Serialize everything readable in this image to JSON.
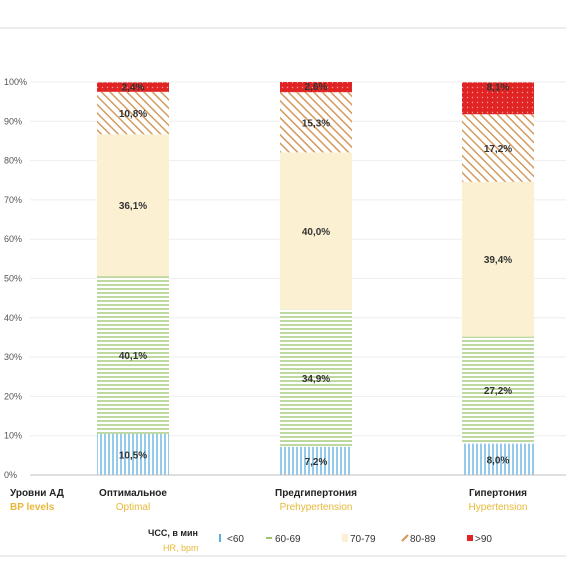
{
  "chart_data": {
    "type": "bar",
    "stacked": true,
    "ylim": [
      0,
      100
    ],
    "y_ticks": [
      "0%",
      "10%",
      "20%",
      "30%",
      "40%",
      "50%",
      "60%",
      "70%",
      "80%",
      "90%",
      "100%"
    ],
    "categories": [
      {
        "ru": "Оптимальное",
        "en": "Optimal"
      },
      {
        "ru": "Предгипертония",
        "en": "Prehypertension"
      },
      {
        "ru": "Гипертония",
        "en": "Hypertension"
      }
    ],
    "category_axis_label": {
      "ru": "Уровни АД",
      "en": "BP levels"
    },
    "series": [
      {
        "name": "<60",
        "color": "#5aaee0",
        "values": [
          10.5,
          7.2,
          8.0
        ],
        "labels": [
          "10,5%",
          "7,2%",
          "8,0%"
        ]
      },
      {
        "name": "60-69",
        "color": "#9cc56e",
        "values": [
          40.1,
          34.9,
          27.2
        ],
        "labels": [
          "40,1%",
          "34,9%",
          "27,2%"
        ]
      },
      {
        "name": "70-79",
        "color": "#fbf1d2",
        "values": [
          36.1,
          40.0,
          39.4
        ],
        "labels": [
          "36,1%",
          "40,0%",
          "39,4%"
        ]
      },
      {
        "name": "80-89",
        "color": "#d49a5e",
        "values": [
          10.8,
          15.3,
          17.2
        ],
        "labels": [
          "10,8%",
          "15,3%",
          "17,2%"
        ]
      },
      {
        "name": ">90",
        "color": "#e02424",
        "values": [
          2.4,
          2.6,
          8.1
        ],
        "labels": [
          "2,4%",
          "2,6%",
          "8,1%"
        ]
      }
    ],
    "legend": {
      "title_ru": "ЧСС, в мин",
      "title_en": "HR, bpm",
      "position": "bottom"
    }
  }
}
